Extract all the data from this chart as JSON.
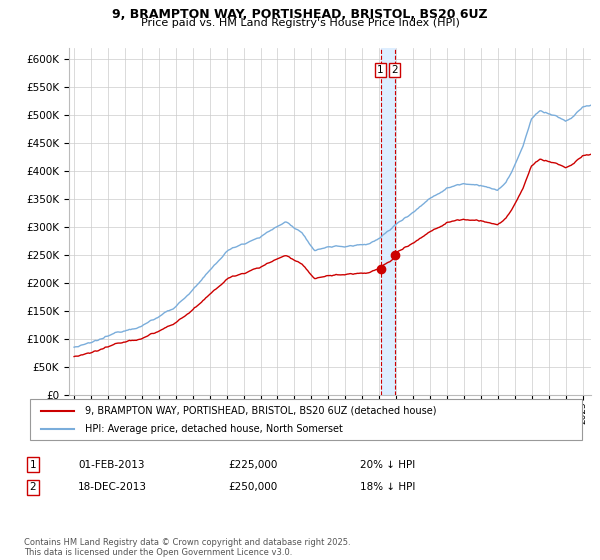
{
  "title1": "9, BRAMPTON WAY, PORTISHEAD, BRISTOL, BS20 6UZ",
  "title2": "Price paid vs. HM Land Registry's House Price Index (HPI)",
  "legend1": "9, BRAMPTON WAY, PORTISHEAD, BRISTOL, BS20 6UZ (detached house)",
  "legend2": "HPI: Average price, detached house, North Somerset",
  "annotation1_label": "1",
  "annotation1_date": "01-FEB-2013",
  "annotation1_price": "£225,000",
  "annotation1_hpi": "20% ↓ HPI",
  "annotation2_label": "2",
  "annotation2_date": "18-DEC-2013",
  "annotation2_price": "£250,000",
  "annotation2_hpi": "18% ↓ HPI",
  "footnote": "Contains HM Land Registry data © Crown copyright and database right 2025.\nThis data is licensed under the Open Government Licence v3.0.",
  "red_color": "#cc0000",
  "blue_color": "#7aaddb",
  "vline_color": "#cc0000",
  "shade_color": "#ddeeff",
  "ylim_min": 0,
  "ylim_max": 620000
}
